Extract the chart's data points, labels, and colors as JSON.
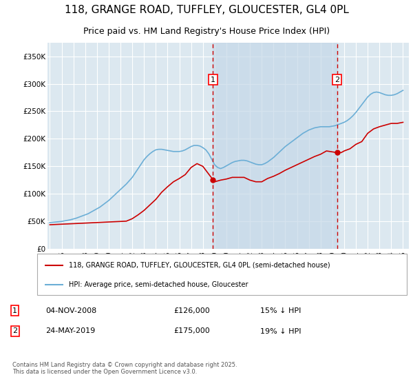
{
  "title": "118, GRANGE ROAD, TUFFLEY, GLOUCESTER, GL4 0PL",
  "subtitle": "Price paid vs. HM Land Registry's House Price Index (HPI)",
  "title_fontsize": 11,
  "subtitle_fontsize": 9,
  "background_color": "#ffffff",
  "plot_bg_color": "#dce8f0",
  "grid_color": "#ffffff",
  "ylim": [
    0,
    375000
  ],
  "yticks": [
    0,
    50000,
    100000,
    150000,
    200000,
    250000,
    300000,
    350000
  ],
  "ytick_labels": [
    "£0",
    "£50K",
    "£100K",
    "£150K",
    "£200K",
    "£250K",
    "£300K",
    "£350K"
  ],
  "hpi_x": [
    1995.0,
    1995.25,
    1995.5,
    1995.75,
    1996.0,
    1996.25,
    1996.5,
    1996.75,
    1997.0,
    1997.25,
    1997.5,
    1997.75,
    1998.0,
    1998.25,
    1998.5,
    1998.75,
    1999.0,
    1999.25,
    1999.5,
    1999.75,
    2000.0,
    2000.25,
    2000.5,
    2000.75,
    2001.0,
    2001.25,
    2001.5,
    2001.75,
    2002.0,
    2002.25,
    2002.5,
    2002.75,
    2003.0,
    2003.25,
    2003.5,
    2003.75,
    2004.0,
    2004.25,
    2004.5,
    2004.75,
    2005.0,
    2005.25,
    2005.5,
    2005.75,
    2006.0,
    2006.25,
    2006.5,
    2006.75,
    2007.0,
    2007.25,
    2007.5,
    2007.75,
    2008.0,
    2008.25,
    2008.5,
    2008.75,
    2009.0,
    2009.25,
    2009.5,
    2009.75,
    2010.0,
    2010.25,
    2010.5,
    2010.75,
    2011.0,
    2011.25,
    2011.5,
    2011.75,
    2012.0,
    2012.25,
    2012.5,
    2012.75,
    2013.0,
    2013.25,
    2013.5,
    2013.75,
    2014.0,
    2014.25,
    2014.5,
    2014.75,
    2015.0,
    2015.25,
    2015.5,
    2015.75,
    2016.0,
    2016.25,
    2016.5,
    2016.75,
    2017.0,
    2017.25,
    2017.5,
    2017.75,
    2018.0,
    2018.25,
    2018.5,
    2018.75,
    2019.0,
    2019.25,
    2019.5,
    2019.75,
    2020.0,
    2020.25,
    2020.5,
    2020.75,
    2021.0,
    2021.25,
    2021.5,
    2021.75,
    2022.0,
    2022.25,
    2022.5,
    2022.75,
    2023.0,
    2023.25,
    2023.5,
    2023.75,
    2024.0,
    2024.25,
    2024.5,
    2024.75,
    2025.0
  ],
  "hpi_y": [
    48000,
    48500,
    49000,
    49500,
    50000,
    51000,
    52000,
    53000,
    54500,
    56000,
    58000,
    60000,
    62000,
    64000,
    67000,
    70000,
    73000,
    76000,
    80000,
    84000,
    88000,
    93000,
    98000,
    103000,
    108000,
    113000,
    118000,
    124000,
    130000,
    138000,
    146000,
    154000,
    162000,
    168000,
    173000,
    177000,
    180000,
    181000,
    181000,
    180000,
    179000,
    178000,
    177000,
    177000,
    177000,
    178000,
    180000,
    183000,
    186000,
    188000,
    188000,
    187000,
    184000,
    180000,
    173000,
    163000,
    153000,
    148000,
    146000,
    148000,
    151000,
    154000,
    157000,
    159000,
    160000,
    161000,
    161000,
    160000,
    158000,
    156000,
    154000,
    153000,
    153000,
    155000,
    158000,
    162000,
    166000,
    171000,
    176000,
    181000,
    186000,
    190000,
    194000,
    198000,
    202000,
    206000,
    210000,
    213000,
    216000,
    218000,
    220000,
    221000,
    222000,
    222000,
    222000,
    222000,
    223000,
    224000,
    226000,
    228000,
    230000,
    233000,
    237000,
    242000,
    248000,
    255000,
    262000,
    269000,
    276000,
    281000,
    284000,
    285000,
    284000,
    282000,
    280000,
    279000,
    279000,
    280000,
    282000,
    285000,
    288000
  ],
  "price_x": [
    1995.0,
    1995.5,
    1996.0,
    1996.5,
    1997.0,
    1997.5,
    1998.0,
    1998.5,
    1999.0,
    1999.5,
    2000.0,
    2000.5,
    2001.0,
    2001.5,
    2002.0,
    2002.5,
    2003.0,
    2003.5,
    2004.0,
    2004.5,
    2005.0,
    2005.5,
    2006.0,
    2006.5,
    2007.0,
    2007.5,
    2008.0,
    2008.85,
    2009.0,
    2009.5,
    2010.0,
    2010.5,
    2011.0,
    2011.5,
    2012.0,
    2012.5,
    2013.0,
    2013.5,
    2014.0,
    2014.5,
    2015.0,
    2015.5,
    2016.0,
    2016.5,
    2017.0,
    2017.5,
    2018.0,
    2018.5,
    2019.39,
    2019.75,
    2020.0,
    2020.5,
    2021.0,
    2021.5,
    2022.0,
    2022.5,
    2023.0,
    2023.5,
    2024.0,
    2024.5,
    2025.0
  ],
  "price_y": [
    44000,
    44500,
    45000,
    45500,
    46000,
    46500,
    47000,
    47500,
    48000,
    48500,
    49000,
    49500,
    50000,
    50500,
    55000,
    62000,
    70000,
    80000,
    90000,
    103000,
    113000,
    122000,
    128000,
    135000,
    148000,
    155000,
    150000,
    126000,
    122000,
    125000,
    127000,
    130000,
    130000,
    130000,
    125000,
    122000,
    122000,
    128000,
    132000,
    137000,
    143000,
    148000,
    153000,
    158000,
    163000,
    168000,
    172000,
    178000,
    175000,
    175000,
    178000,
    182000,
    190000,
    195000,
    210000,
    218000,
    222000,
    225000,
    228000,
    228000,
    230000
  ],
  "hpi_color": "#6baed6",
  "price_color": "#cc0000",
  "marker1_x": 2008.85,
  "marker1_y": 126000,
  "marker1_label": "1",
  "marker1_date": "04-NOV-2008",
  "marker1_price": "£126,000",
  "marker1_pct": "15% ↓ HPI",
  "marker2_x": 2019.39,
  "marker2_y": 175000,
  "marker2_label": "2",
  "marker2_date": "24-MAY-2019",
  "marker2_price": "£175,000",
  "marker2_pct": "19% ↓ HPI",
  "vline_color": "#cc0000",
  "legend_label_price": "118, GRANGE ROAD, TUFFLEY, GLOUCESTER, GL4 0PL (semi-detached house)",
  "legend_label_hpi": "HPI: Average price, semi-detached house, Gloucester",
  "footnote": "Contains HM Land Registry data © Crown copyright and database right 2025.\nThis data is licensed under the Open Government Licence v3.0.",
  "xlim_min": 1994.8,
  "xlim_max": 2025.5
}
